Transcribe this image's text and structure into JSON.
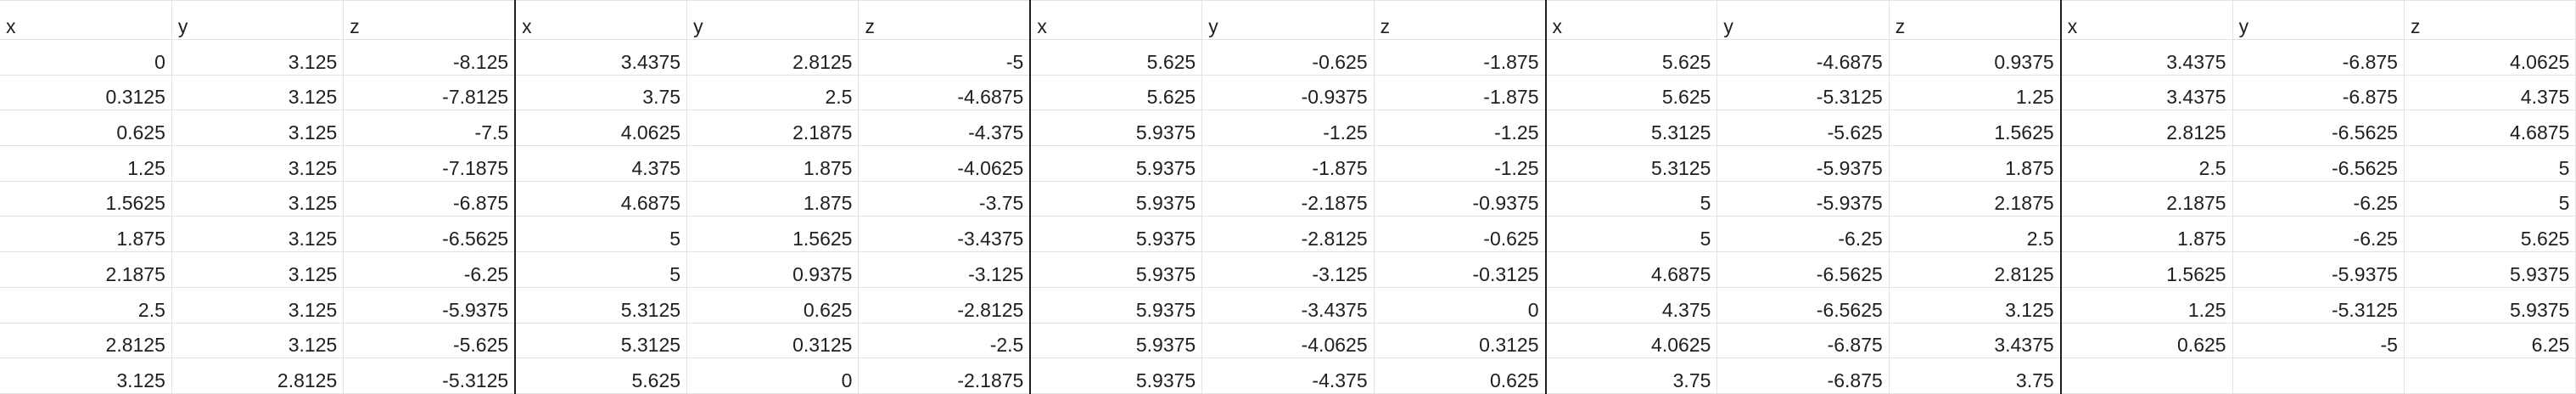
{
  "sheet": {
    "headers": [
      "x",
      "y",
      "z",
      "x",
      "y",
      "z",
      "x",
      "y",
      "z",
      "x",
      "y",
      "z",
      "x",
      "y",
      "z"
    ],
    "rows": [
      [
        "0",
        "3.125",
        "-8.125",
        "3.4375",
        "2.8125",
        "-5",
        "5.625",
        "-0.625",
        "-1.875",
        "5.625",
        "-4.6875",
        "0.9375",
        "3.4375",
        "-6.875",
        "4.0625"
      ],
      [
        "0.3125",
        "3.125",
        "-7.8125",
        "3.75",
        "2.5",
        "-4.6875",
        "5.625",
        "-0.9375",
        "-1.875",
        "5.625",
        "-5.3125",
        "1.25",
        "3.4375",
        "-6.875",
        "4.375"
      ],
      [
        "0.625",
        "3.125",
        "-7.5",
        "4.0625",
        "2.1875",
        "-4.375",
        "5.9375",
        "-1.25",
        "-1.25",
        "5.3125",
        "-5.625",
        "1.5625",
        "2.8125",
        "-6.5625",
        "4.6875"
      ],
      [
        "1.25",
        "3.125",
        "-7.1875",
        "4.375",
        "1.875",
        "-4.0625",
        "5.9375",
        "-1.875",
        "-1.25",
        "5.3125",
        "-5.9375",
        "1.875",
        "2.5",
        "-6.5625",
        "5"
      ],
      [
        "1.5625",
        "3.125",
        "-6.875",
        "4.6875",
        "1.875",
        "-3.75",
        "5.9375",
        "-2.1875",
        "-0.9375",
        "5",
        "-5.9375",
        "2.1875",
        "2.1875",
        "-6.25",
        "5"
      ],
      [
        "1.875",
        "3.125",
        "-6.5625",
        "5",
        "1.5625",
        "-3.4375",
        "5.9375",
        "-2.8125",
        "-0.625",
        "5",
        "-6.25",
        "2.5",
        "1.875",
        "-6.25",
        "5.625"
      ],
      [
        "2.1875",
        "3.125",
        "-6.25",
        "5",
        "0.9375",
        "-3.125",
        "5.9375",
        "-3.125",
        "-0.3125",
        "4.6875",
        "-6.5625",
        "2.8125",
        "1.5625",
        "-5.9375",
        "5.9375"
      ],
      [
        "2.5",
        "3.125",
        "-5.9375",
        "5.3125",
        "0.625",
        "-2.8125",
        "5.9375",
        "-3.4375",
        "0",
        "4.375",
        "-6.5625",
        "3.125",
        "1.25",
        "-5.3125",
        "5.9375"
      ],
      [
        "2.8125",
        "3.125",
        "-5.625",
        "5.3125",
        "0.3125",
        "-2.5",
        "5.9375",
        "-4.0625",
        "0.3125",
        "4.0625",
        "-6.875",
        "3.4375",
        "0.625",
        "-5",
        "6.25"
      ],
      [
        "3.125",
        "2.8125",
        "-5.3125",
        "5.625",
        "0",
        "-2.1875",
        "5.9375",
        "-4.375",
        "0.625",
        "3.75",
        "-6.875",
        "3.75",
        "",
        "",
        ""
      ]
    ]
  }
}
